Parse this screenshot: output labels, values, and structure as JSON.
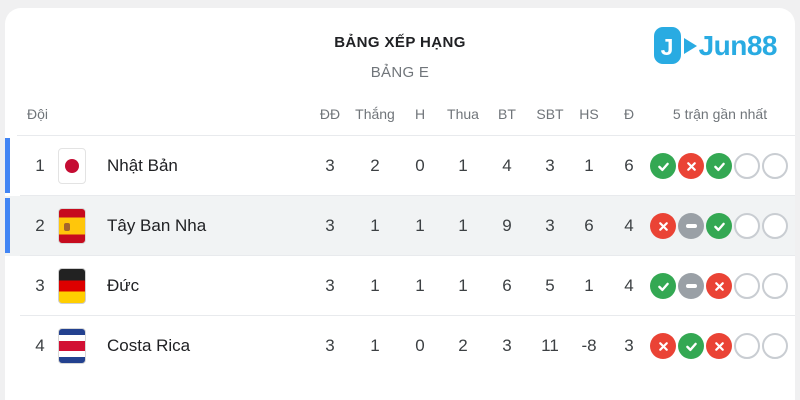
{
  "page": {
    "title": "BẢNG XẾP HẠNG",
    "subtitle": "BẢNG E"
  },
  "logo": {
    "text": "Jun88",
    "icon": "jun88-j-play-icon",
    "color": "#29abe2"
  },
  "table": {
    "team_header": "Đội",
    "stat_headers": [
      "ĐĐ",
      "Thắng",
      "H",
      "Thua",
      "BT",
      "SBT",
      "HS",
      "Đ"
    ],
    "form_header": "5 trận gần nhất",
    "rows": [
      {
        "rank": "1",
        "team": "Nhật Bản",
        "flag": "japan",
        "qualified": true,
        "highlighted": false,
        "stats": [
          "3",
          "2",
          "0",
          "1",
          "4",
          "3",
          "1",
          "6"
        ],
        "form": [
          "win",
          "loss",
          "win",
          "none",
          "none"
        ]
      },
      {
        "rank": "2",
        "team": "Tây Ban Nha",
        "flag": "spain",
        "qualified": true,
        "highlighted": true,
        "stats": [
          "3",
          "1",
          "1",
          "1",
          "9",
          "3",
          "6",
          "4"
        ],
        "form": [
          "loss",
          "draw",
          "win",
          "none",
          "none"
        ]
      },
      {
        "rank": "3",
        "team": "Đức",
        "flag": "germany",
        "qualified": false,
        "highlighted": false,
        "stats": [
          "3",
          "1",
          "1",
          "1",
          "6",
          "5",
          "1",
          "4"
        ],
        "form": [
          "win",
          "draw",
          "loss",
          "none",
          "none"
        ]
      },
      {
        "rank": "4",
        "team": "Costa Rica",
        "flag": "costa-rica",
        "qualified": false,
        "highlighted": false,
        "stats": [
          "3",
          "1",
          "0",
          "2",
          "3",
          "11",
          "-8",
          "3"
        ],
        "form": [
          "loss",
          "win",
          "loss",
          "none",
          "none"
        ]
      }
    ]
  },
  "icons": {
    "win": "check-circle-icon",
    "loss": "x-circle-icon",
    "draw": "minus-circle-icon",
    "none": "empty-circle-icon"
  },
  "colors": {
    "win": "#34a853",
    "loss": "#ea4335",
    "draw": "#9aa0a6",
    "qualified_bar": "#4285f4",
    "highlight_row": "#f1f3f4",
    "logo_blue": "#29abe2"
  }
}
